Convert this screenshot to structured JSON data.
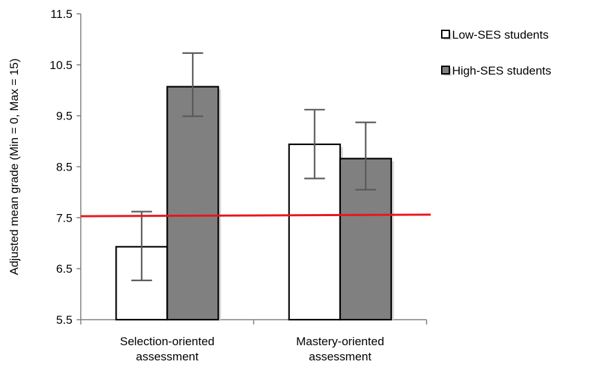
{
  "chart_data": {
    "type": "bar",
    "title": "",
    "xlabel": "",
    "ylabel": "Adjusted mean grade (Min = 0, Max = 15)",
    "ylim": [
      5.5,
      11.5
    ],
    "yticks": [
      "5.5",
      "6.5",
      "7.5",
      "8.5",
      "9.5",
      "10.5",
      "11.5"
    ],
    "categories": [
      [
        "Selection-oriented",
        "assessment"
      ],
      [
        "Mastery-oriented",
        "assessment"
      ]
    ],
    "series": [
      {
        "name": "Low-SES students",
        "color": "#ffffff",
        "values": [
          6.93,
          8.94
        ],
        "error_low": [
          6.27,
          8.27
        ],
        "error_high": [
          7.62,
          9.62
        ]
      },
      {
        "name": "High-SES students",
        "color": "#808080",
        "values": [
          10.07,
          8.66
        ],
        "error_low": [
          9.49,
          8.05
        ],
        "error_high": [
          10.73,
          9.37
        ]
      }
    ],
    "reference_line": {
      "color": "#e8151b",
      "y_start": 7.53,
      "y_end": 7.56
    },
    "legend_position": "top-right",
    "grid": false
  }
}
